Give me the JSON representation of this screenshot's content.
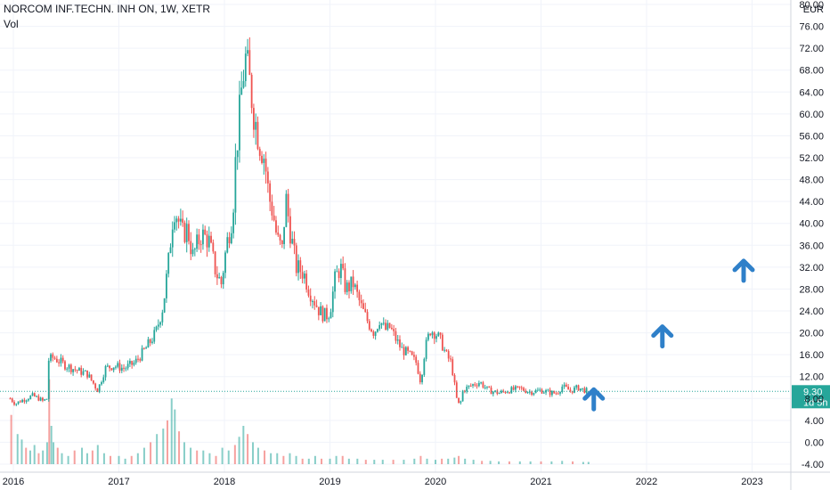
{
  "header": {
    "title": "NORCOM INF.TECHN. INH ON, 1W, XETR",
    "volume_label": "Vol"
  },
  "colors": {
    "up": "#26a69a",
    "down": "#ef5350",
    "grid": "#f0f3fa",
    "axis_text": "#131722",
    "price_line": "#26a69a",
    "arrow": "#2f80c9",
    "badge_bg": "#26a69a",
    "badge_text": "#ffffff"
  },
  "chart_data": {
    "type": "candlestick",
    "title": "NORCOM INF.TECHN. INH ON, 1W, XETR",
    "currency": "EUR",
    "x_tick_labels": [
      "2016",
      "2017",
      "2018",
      "2019",
      "2020",
      "2021",
      "2022",
      "2023"
    ],
    "y_tick_labels": [
      "80.00",
      "76.00",
      "72.00",
      "68.00",
      "64.00",
      "60.00",
      "56.00",
      "52.00",
      "48.00",
      "44.00",
      "40.00",
      "36.00",
      "32.00",
      "28.00",
      "24.00",
      "20.00",
      "16.00",
      "12.00",
      "8.00",
      "4.00",
      "0.00",
      "-4.00"
    ],
    "y_range": [
      -4,
      80
    ],
    "x_range": [
      2015.97,
      2023.5
    ],
    "grid": true,
    "last_price": "9.30",
    "countdown": "1d 5h",
    "price_path": [
      [
        2015.97,
        8.0
      ],
      [
        2016.02,
        7.0
      ],
      [
        2016.06,
        7.5
      ],
      [
        2016.1,
        7.8
      ],
      [
        2016.18,
        8.5
      ],
      [
        2016.24,
        8.0
      ],
      [
        2016.28,
        7.5
      ],
      [
        2016.32,
        8.0
      ],
      [
        2016.33,
        15.0
      ],
      [
        2016.38,
        15.5
      ],
      [
        2016.5,
        14.0
      ],
      [
        2016.62,
        13.0
      ],
      [
        2016.7,
        12.5
      ],
      [
        2016.8,
        9.5
      ],
      [
        2016.87,
        13.5
      ],
      [
        2016.95,
        14.0
      ],
      [
        2017.05,
        13.5
      ],
      [
        2017.15,
        14.5
      ],
      [
        2017.25,
        17.0
      ],
      [
        2017.35,
        20.0
      ],
      [
        2017.42,
        25.0
      ],
      [
        2017.47,
        33.0
      ],
      [
        2017.52,
        43.0
      ],
      [
        2017.55,
        41.5
      ],
      [
        2017.6,
        38.0
      ],
      [
        2017.65,
        39.0
      ],
      [
        2017.7,
        34.0
      ],
      [
        2017.78,
        38.0
      ],
      [
        2017.85,
        37.0
      ],
      [
        2017.92,
        31.0
      ],
      [
        2017.97,
        29.0
      ],
      [
        2018.02,
        36.0
      ],
      [
        2018.08,
        42.0
      ],
      [
        2018.1,
        50.0
      ],
      [
        2018.13,
        57.0
      ],
      [
        2018.17,
        66.0
      ],
      [
        2018.2,
        70.0
      ],
      [
        2018.23,
        67.0
      ],
      [
        2018.28,
        60.0
      ],
      [
        2018.33,
        55.0
      ],
      [
        2018.38,
        52.0
      ],
      [
        2018.42,
        45.0
      ],
      [
        2018.46,
        42.0
      ],
      [
        2018.5,
        37.0
      ],
      [
        2018.55,
        35.0
      ],
      [
        2018.58,
        45.0
      ],
      [
        2018.62,
        39.0
      ],
      [
        2018.68,
        32.0
      ],
      [
        2018.75,
        31.0
      ],
      [
        2018.8,
        28.0
      ],
      [
        2018.85,
        26.0
      ],
      [
        2018.9,
        24.0
      ],
      [
        2018.96,
        23.0
      ],
      [
        2019.0,
        24.0
      ],
      [
        2019.05,
        30.0
      ],
      [
        2019.1,
        32.0
      ],
      [
        2019.15,
        28.0
      ],
      [
        2019.22,
        29.0
      ],
      [
        2019.3,
        24.5
      ],
      [
        2019.36,
        22.0
      ],
      [
        2019.42,
        20.0
      ],
      [
        2019.47,
        22.5
      ],
      [
        2019.52,
        20.5
      ],
      [
        2019.57,
        21.0
      ],
      [
        2019.62,
        19.0
      ],
      [
        2019.68,
        17.0
      ],
      [
        2019.75,
        16.0
      ],
      [
        2019.82,
        14.5
      ],
      [
        2019.86,
        11.0
      ],
      [
        2019.9,
        17.0
      ],
      [
        2019.95,
        20.5
      ],
      [
        2020.0,
        20.0
      ],
      [
        2020.05,
        18.5
      ],
      [
        2020.1,
        16.0
      ],
      [
        2020.15,
        14.5
      ],
      [
        2020.2,
        8.0
      ],
      [
        2020.23,
        6.5
      ],
      [
        2020.26,
        9.5
      ],
      [
        2020.35,
        10.5
      ],
      [
        2020.42,
        11.0
      ],
      [
        2020.5,
        9.5
      ],
      [
        2020.6,
        9.0
      ],
      [
        2020.7,
        9.5
      ],
      [
        2020.8,
        9.8
      ],
      [
        2020.9,
        9.2
      ],
      [
        2021.0,
        9.5
      ],
      [
        2021.1,
        9.0
      ],
      [
        2021.15,
        9.0
      ],
      [
        2021.2,
        10.2
      ],
      [
        2021.28,
        9.4
      ],
      [
        2021.35,
        10.0
      ],
      [
        2021.4,
        9.6
      ],
      [
        2021.45,
        9.3
      ]
    ],
    "volume": [
      [
        2015.98,
        9.0
      ],
      [
        2016.04,
        5.5
      ],
      [
        2016.08,
        4.5
      ],
      [
        2016.12,
        3.0
      ],
      [
        2016.16,
        2.5
      ],
      [
        2016.2,
        3.5
      ],
      [
        2016.24,
        2.0
      ],
      [
        2016.28,
        2.5
      ],
      [
        2016.32,
        4.0
      ],
      [
        2016.34,
        15.5
      ],
      [
        2016.36,
        7.0
      ],
      [
        2016.38,
        4.0
      ],
      [
        2016.42,
        3.0
      ],
      [
        2016.46,
        2.0
      ],
      [
        2016.52,
        1.5
      ],
      [
        2016.58,
        2.5
      ],
      [
        2016.65,
        3.0
      ],
      [
        2016.7,
        2.0
      ],
      [
        2016.75,
        2.5
      ],
      [
        2016.8,
        3.5
      ],
      [
        2016.86,
        2.0
      ],
      [
        2016.92,
        1.5
      ],
      [
        2017.0,
        1.5
      ],
      [
        2017.06,
        1.0
      ],
      [
        2017.12,
        1.5
      ],
      [
        2017.18,
        2.0
      ],
      [
        2017.24,
        3.0
      ],
      [
        2017.3,
        4.0
      ],
      [
        2017.36,
        5.5
      ],
      [
        2017.42,
        6.5
      ],
      [
        2017.46,
        8.0
      ],
      [
        2017.5,
        12.0
      ],
      [
        2017.53,
        10.0
      ],
      [
        2017.57,
        6.0
      ],
      [
        2017.62,
        4.0
      ],
      [
        2017.68,
        3.0
      ],
      [
        2017.74,
        2.5
      ],
      [
        2017.8,
        2.5
      ],
      [
        2017.86,
        2.0
      ],
      [
        2017.92,
        1.5
      ],
      [
        2017.98,
        3.0
      ],
      [
        2018.04,
        2.5
      ],
      [
        2018.1,
        3.5
      ],
      [
        2018.14,
        5.0
      ],
      [
        2018.18,
        7.0
      ],
      [
        2018.22,
        5.5
      ],
      [
        2018.27,
        4.0
      ],
      [
        2018.32,
        3.0
      ],
      [
        2018.38,
        2.5
      ],
      [
        2018.44,
        2.0
      ],
      [
        2018.5,
        2.0
      ],
      [
        2018.56,
        1.5
      ],
      [
        2018.62,
        2.0
      ],
      [
        2018.68,
        1.5
      ],
      [
        2018.74,
        1.0
      ],
      [
        2018.8,
        1.0
      ],
      [
        2018.86,
        1.5
      ],
      [
        2018.92,
        1.0
      ],
      [
        2019.0,
        1.0
      ],
      [
        2019.06,
        1.5
      ],
      [
        2019.12,
        1.5
      ],
      [
        2019.18,
        1.0
      ],
      [
        2019.26,
        1.0
      ],
      [
        2019.34,
        0.8
      ],
      [
        2019.42,
        0.8
      ],
      [
        2019.5,
        0.8
      ],
      [
        2019.6,
        0.8
      ],
      [
        2019.7,
        0.8
      ],
      [
        2019.8,
        1.0
      ],
      [
        2019.86,
        1.5
      ],
      [
        2019.92,
        1.0
      ],
      [
        2020.0,
        0.8
      ],
      [
        2020.06,
        1.0
      ],
      [
        2020.12,
        1.0
      ],
      [
        2020.18,
        1.2
      ],
      [
        2020.22,
        1.5
      ],
      [
        2020.28,
        1.0
      ],
      [
        2020.36,
        0.8
      ],
      [
        2020.44,
        0.6
      ],
      [
        2020.52,
        0.6
      ],
      [
        2020.6,
        0.5
      ],
      [
        2020.7,
        0.5
      ],
      [
        2020.8,
        0.5
      ],
      [
        2020.9,
        0.5
      ],
      [
        2021.0,
        0.5
      ],
      [
        2021.1,
        0.5
      ],
      [
        2021.2,
        0.6
      ],
      [
        2021.3,
        0.5
      ],
      [
        2021.4,
        0.4
      ],
      [
        2021.45,
        0.4
      ]
    ],
    "annotations": [
      {
        "type": "arrow-up",
        "x": 2021.5,
        "y": 8.0
      },
      {
        "type": "arrow-up",
        "x": 2022.15,
        "y": 19.5
      },
      {
        "type": "arrow-up",
        "x": 2022.92,
        "y": 31.5
      }
    ]
  }
}
